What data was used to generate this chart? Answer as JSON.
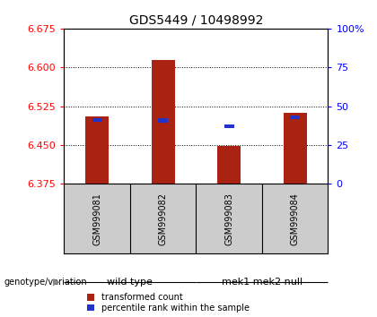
{
  "title": "GDS5449 / 10498992",
  "samples": [
    "GSM999081",
    "GSM999082",
    "GSM999083",
    "GSM999084"
  ],
  "bar_bottom": 6.375,
  "bar_tops": [
    6.505,
    6.615,
    6.448,
    6.513
  ],
  "percentile_values": [
    6.495,
    6.494,
    6.482,
    6.5
  ],
  "ylim_left": [
    6.375,
    6.675
  ],
  "ylim_right": [
    0,
    100
  ],
  "yticks_left": [
    6.375,
    6.45,
    6.525,
    6.6,
    6.675
  ],
  "yticks_right": [
    0,
    25,
    50,
    75,
    100
  ],
  "bar_color": "#aa2211",
  "blue_color": "#2233cc",
  "groups": [
    {
      "label": "wild type",
      "samples": [
        0,
        1
      ],
      "color": "#bbffbb"
    },
    {
      "label": "mek1 mek2 null",
      "samples": [
        2,
        3
      ],
      "color": "#44dd44"
    }
  ],
  "group_label": "genotype/variation",
  "legend1": "transformed count",
  "legend2": "percentile rank within the sample",
  "bg_plot": "#ffffff",
  "bg_sample": "#cccccc",
  "title_fontsize": 10,
  "tick_fontsize": 8,
  "sample_fontsize": 7,
  "group_fontsize": 8,
  "legend_fontsize": 7
}
